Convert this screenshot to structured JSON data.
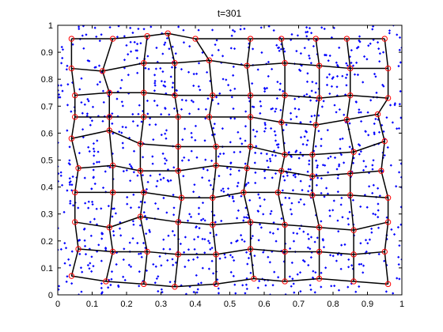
{
  "chart_data": {
    "type": "scatter",
    "title": "t=301",
    "xlabel": "",
    "ylabel": "",
    "xlim": [
      0,
      1
    ],
    "ylim": [
      0,
      1
    ],
    "xticks": [
      "0",
      "0.1",
      "0.2",
      "0.3",
      "0.4",
      "0.5",
      "0.6",
      "0.7",
      "0.8",
      "0.9",
      "1"
    ],
    "yticks": [
      "0",
      "0.1",
      "0.2",
      "0.3",
      "0.4",
      "0.5",
      "0.6",
      "0.7",
      "0.8",
      "0.9",
      "1"
    ],
    "grid": false,
    "colors": {
      "points": "#0000ff",
      "neurons": "#ff0000",
      "edges": "#000000"
    },
    "grid_rows": 10,
    "grid_cols": 10,
    "neurons": [
      [
        [
          0.04,
          0.07
        ],
        [
          0.14,
          0.05
        ],
        [
          0.25,
          0.04
        ],
        [
          0.34,
          0.03
        ],
        [
          0.46,
          0.04
        ],
        [
          0.57,
          0.06
        ],
        [
          0.66,
          0.05
        ],
        [
          0.76,
          0.06
        ],
        [
          0.86,
          0.05
        ],
        [
          0.96,
          0.04
        ]
      ],
      [
        [
          0.06,
          0.17
        ],
        [
          0.16,
          0.16
        ],
        [
          0.26,
          0.16
        ],
        [
          0.35,
          0.15
        ],
        [
          0.46,
          0.15
        ],
        [
          0.56,
          0.17
        ],
        [
          0.66,
          0.16
        ],
        [
          0.76,
          0.16
        ],
        [
          0.86,
          0.15
        ],
        [
          0.95,
          0.16
        ]
      ],
      [
        [
          0.05,
          0.27
        ],
        [
          0.15,
          0.25
        ],
        [
          0.24,
          0.29
        ],
        [
          0.35,
          0.27
        ],
        [
          0.45,
          0.26
        ],
        [
          0.56,
          0.27
        ],
        [
          0.66,
          0.26
        ],
        [
          0.76,
          0.25
        ],
        [
          0.86,
          0.24
        ],
        [
          0.96,
          0.27
        ]
      ],
      [
        [
          0.05,
          0.38
        ],
        [
          0.16,
          0.38
        ],
        [
          0.25,
          0.38
        ],
        [
          0.36,
          0.36
        ],
        [
          0.45,
          0.36
        ],
        [
          0.54,
          0.38
        ],
        [
          0.64,
          0.38
        ],
        [
          0.74,
          0.37
        ],
        [
          0.85,
          0.37
        ],
        [
          0.96,
          0.36
        ]
      ],
      [
        [
          0.06,
          0.47
        ],
        [
          0.16,
          0.48
        ],
        [
          0.24,
          0.46
        ],
        [
          0.35,
          0.46
        ],
        [
          0.46,
          0.48
        ],
        [
          0.55,
          0.47
        ],
        [
          0.65,
          0.46
        ],
        [
          0.74,
          0.44
        ],
        [
          0.85,
          0.45
        ],
        [
          0.94,
          0.46
        ]
      ],
      [
        [
          0.04,
          0.58
        ],
        [
          0.15,
          0.61
        ],
        [
          0.24,
          0.56
        ],
        [
          0.35,
          0.55
        ],
        [
          0.46,
          0.55
        ],
        [
          0.56,
          0.55
        ],
        [
          0.66,
          0.52
        ],
        [
          0.74,
          0.52
        ],
        [
          0.86,
          0.53
        ],
        [
          0.95,
          0.57
        ]
      ],
      [
        [
          0.05,
          0.66
        ],
        [
          0.15,
          0.66
        ],
        [
          0.25,
          0.66
        ],
        [
          0.35,
          0.66
        ],
        [
          0.44,
          0.66
        ],
        [
          0.56,
          0.66
        ],
        [
          0.65,
          0.64
        ],
        [
          0.75,
          0.63
        ],
        [
          0.84,
          0.65
        ],
        [
          0.93,
          0.67
        ]
      ],
      [
        [
          0.05,
          0.74
        ],
        [
          0.15,
          0.75
        ],
        [
          0.25,
          0.75
        ],
        [
          0.34,
          0.74
        ],
        [
          0.45,
          0.74
        ],
        [
          0.56,
          0.74
        ],
        [
          0.66,
          0.74
        ],
        [
          0.76,
          0.73
        ],
        [
          0.85,
          0.74
        ],
        [
          0.96,
          0.73
        ]
      ],
      [
        [
          0.04,
          0.84
        ],
        [
          0.13,
          0.83
        ],
        [
          0.25,
          0.86
        ],
        [
          0.34,
          0.86
        ],
        [
          0.44,
          0.87
        ],
        [
          0.55,
          0.85
        ],
        [
          0.66,
          0.86
        ],
        [
          0.76,
          0.85
        ],
        [
          0.85,
          0.84
        ],
        [
          0.96,
          0.84
        ]
      ],
      [
        [
          0.04,
          0.95
        ],
        [
          0.16,
          0.95
        ],
        [
          0.26,
          0.96
        ],
        [
          0.32,
          0.97
        ],
        [
          0.4,
          0.95
        ],
        [
          0.56,
          0.95
        ],
        [
          0.65,
          0.95
        ],
        [
          0.75,
          0.95
        ],
        [
          0.84,
          0.95
        ],
        [
          0.95,
          0.95
        ]
      ]
    ]
  }
}
